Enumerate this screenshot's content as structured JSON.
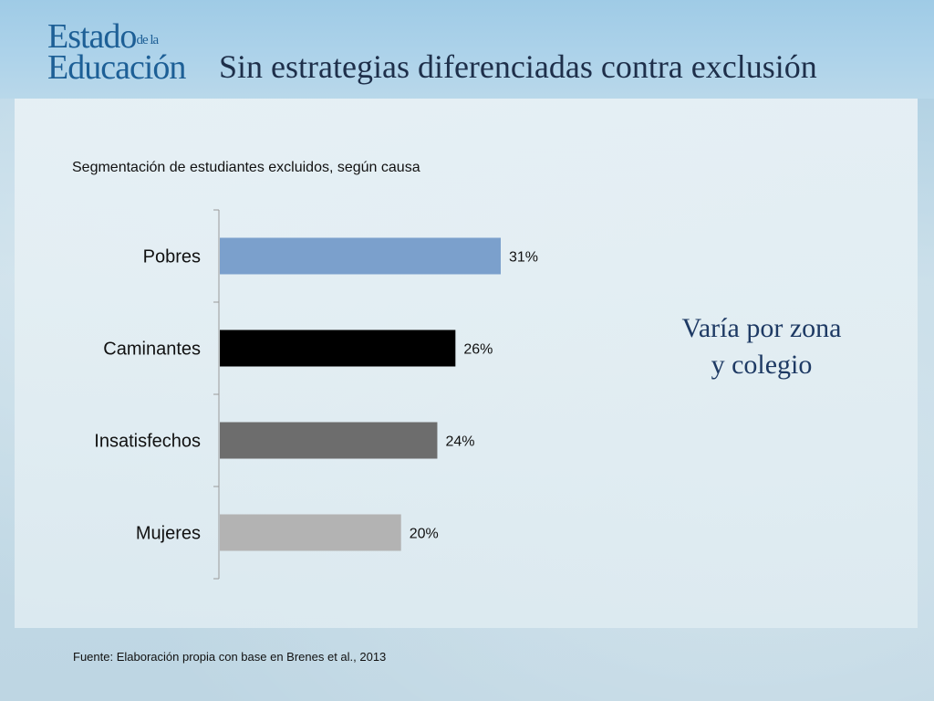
{
  "logo": {
    "line1_big": "Estado",
    "line1_small": "de la",
    "line2": "Educación"
  },
  "slide_title": "Sin estrategias diferenciadas contra exclusión",
  "side_note": {
    "line1": "Varía por zona",
    "line2": "y colegio"
  },
  "source_note": "Fuente: Elaboración propia con base en Brenes et al., 2013",
  "colors": {
    "bar_pobres": "#7ba0cc",
    "bar_caminantes": "#000000",
    "bar_insatisfechos": "#6d6d6d",
    "bar_mujeres": "#b3b3b3"
  },
  "chart_data": {
    "type": "bar",
    "orientation": "horizontal",
    "title": "Segmentación de estudiantes excluidos, según causa",
    "categories": [
      "Pobres",
      "Caminantes",
      "Insatisfechos",
      "Mujeres"
    ],
    "values": [
      31,
      26,
      24,
      20
    ],
    "value_labels": [
      "31%",
      "26%",
      "24%",
      "20%"
    ],
    "unit": "%",
    "xlim": [
      0,
      35
    ],
    "grid": false,
    "legend": "none"
  }
}
